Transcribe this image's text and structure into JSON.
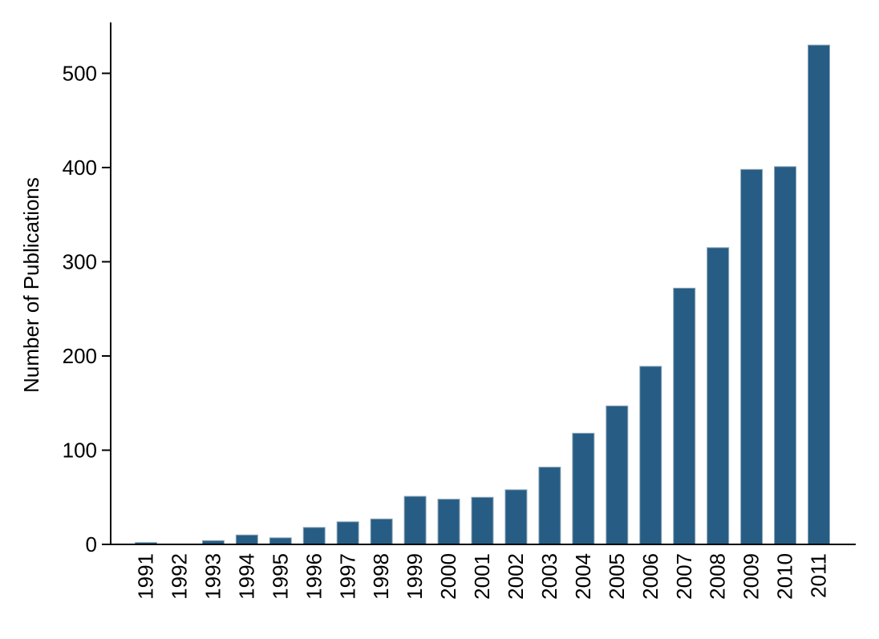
{
  "chart_data": {
    "type": "bar",
    "title": "",
    "xlabel": "",
    "ylabel": "Number of Publications",
    "categories": [
      "1991",
      "1992",
      "1993",
      "1994",
      "1995",
      "1996",
      "1997",
      "1998",
      "1999",
      "2000",
      "2001",
      "2002",
      "2003",
      "2004",
      "2005",
      "2006",
      "2007",
      "2008",
      "2009",
      "2010",
      "2011"
    ],
    "values": [
      2,
      0,
      4,
      10,
      7,
      18,
      24,
      27,
      51,
      48,
      50,
      58,
      82,
      118,
      147,
      189,
      272,
      315,
      398,
      401,
      530
    ],
    "yticks": [
      0,
      100,
      200,
      300,
      400,
      500
    ],
    "ylim": [
      0,
      554
    ],
    "grid": false,
    "legend": false,
    "colors": {
      "bar_fill": "#275d84",
      "bar_outline": "#8fa8ba",
      "axis": "#000000",
      "text": "#000000",
      "background": "#ffffff"
    }
  }
}
